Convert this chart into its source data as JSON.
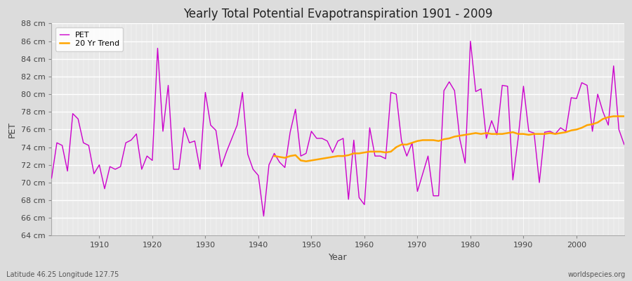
{
  "title": "Yearly Total Potential Evapotranspiration 1901 - 2009",
  "xlabel": "Year",
  "ylabel": "PET",
  "bottom_left_label": "Latitude 46.25 Longitude 127.75",
  "bottom_right_label": "worldspecies.org",
  "pet_color": "#cc00cc",
  "trend_color": "#ffa500",
  "background_color": "#dcdcdc",
  "plot_bg_color": "#e8e8e8",
  "ylim": [
    64,
    88
  ],
  "xlim": [
    1901,
    2009
  ],
  "ytick_step": 2,
  "legend_labels": [
    "PET",
    "20 Yr Trend"
  ],
  "xticks": [
    1910,
    1920,
    1930,
    1940,
    1950,
    1960,
    1970,
    1980,
    1990,
    2000
  ],
  "years": [
    1901,
    1902,
    1903,
    1904,
    1905,
    1906,
    1907,
    1908,
    1909,
    1910,
    1911,
    1912,
    1913,
    1914,
    1915,
    1916,
    1917,
    1918,
    1919,
    1920,
    1921,
    1922,
    1923,
    1924,
    1925,
    1926,
    1927,
    1928,
    1929,
    1930,
    1931,
    1932,
    1933,
    1934,
    1935,
    1936,
    1937,
    1938,
    1939,
    1940,
    1941,
    1942,
    1943,
    1944,
    1945,
    1946,
    1947,
    1948,
    1949,
    1950,
    1951,
    1952,
    1953,
    1954,
    1955,
    1956,
    1957,
    1958,
    1959,
    1960,
    1961,
    1962,
    1963,
    1964,
    1965,
    1966,
    1967,
    1968,
    1969,
    1970,
    1971,
    1972,
    1973,
    1974,
    1975,
    1976,
    1977,
    1978,
    1979,
    1980,
    1981,
    1982,
    1983,
    1984,
    1985,
    1986,
    1987,
    1988,
    1989,
    1990,
    1991,
    1992,
    1993,
    1994,
    1995,
    1996,
    1997,
    1998,
    1999,
    2000,
    2001,
    2002,
    2003,
    2004,
    2005,
    2006,
    2007,
    2008,
    2009
  ],
  "pet_values": [
    70.5,
    74.5,
    74.2,
    71.3,
    77.8,
    77.2,
    74.5,
    74.2,
    71.0,
    72.0,
    69.3,
    71.8,
    71.5,
    71.8,
    74.5,
    74.8,
    75.5,
    71.5,
    73.0,
    72.5,
    85.2,
    75.8,
    81.0,
    71.5,
    71.5,
    76.2,
    74.5,
    74.7,
    71.5,
    80.2,
    76.5,
    75.9,
    71.8,
    73.5,
    75.0,
    76.5,
    80.2,
    73.2,
    71.5,
    70.8,
    66.2,
    72.0,
    73.3,
    72.3,
    71.7,
    75.7,
    78.3,
    73.0,
    73.3,
    75.8,
    75.0,
    75.0,
    74.7,
    73.4,
    74.7,
    75.0,
    68.1,
    74.8,
    68.3,
    67.5,
    76.2,
    73.0,
    73.0,
    72.7,
    80.2,
    80.0,
    74.7,
    73.0,
    74.5,
    69.0,
    71.0,
    73.0,
    68.5,
    68.5,
    80.4,
    81.4,
    80.4,
    74.9,
    72.2,
    86.0,
    80.3,
    80.6,
    75.0,
    77.0,
    75.4,
    81.0,
    80.9,
    70.3,
    75.0,
    80.9,
    75.8,
    75.6,
    70.0,
    75.7,
    75.8,
    75.5,
    76.2,
    75.8,
    79.6,
    79.5,
    81.3,
    81.0,
    75.8,
    80.0,
    78.0,
    76.5,
    83.2,
    76.0,
    74.3
  ],
  "trend_years": [
    1943,
    1944,
    1945,
    1946,
    1947,
    1948,
    1949,
    1950,
    1951,
    1952,
    1953,
    1954,
    1955,
    1956,
    1957,
    1958,
    1959,
    1960,
    1961,
    1962,
    1963,
    1964,
    1965,
    1966,
    1967,
    1968,
    1969,
    1970,
    1971,
    1972,
    1973,
    1974,
    1975,
    1976,
    1977,
    1978,
    1979,
    1980,
    1981,
    1982,
    1983,
    1984,
    1985,
    1986,
    1987,
    1988,
    1989,
    1990,
    1991,
    1992,
    1993,
    1994,
    1995,
    1996,
    1997,
    1998,
    1999,
    2000,
    2001,
    2002,
    2003,
    2004,
    2005,
    2006,
    2007,
    2008,
    2009
  ],
  "trend_values": [
    73.0,
    72.9,
    72.8,
    73.0,
    73.1,
    72.5,
    72.4,
    72.5,
    72.6,
    72.7,
    72.8,
    72.9,
    73.0,
    73.0,
    73.1,
    73.3,
    73.3,
    73.4,
    73.5,
    73.5,
    73.5,
    73.4,
    73.5,
    74.0,
    74.3,
    74.3,
    74.5,
    74.7,
    74.8,
    74.8,
    74.8,
    74.7,
    74.9,
    75.0,
    75.2,
    75.3,
    75.4,
    75.5,
    75.6,
    75.5,
    75.6,
    75.5,
    75.5,
    75.5,
    75.6,
    75.7,
    75.5,
    75.5,
    75.4,
    75.5,
    75.5,
    75.5,
    75.6,
    75.5,
    75.6,
    75.7,
    75.9,
    76.0,
    76.2,
    76.5,
    76.6,
    76.8,
    77.2,
    77.4,
    77.5,
    77.5,
    77.5
  ]
}
